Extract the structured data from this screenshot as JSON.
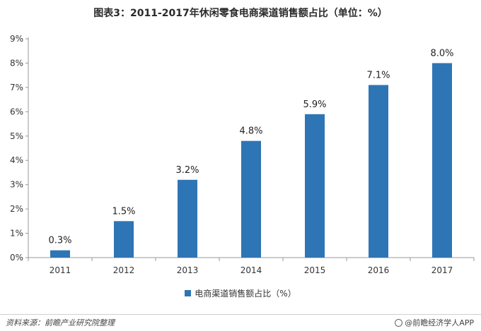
{
  "title": "图表3：2011-2017年休闲零食电商渠道销售额占比（单位：%）",
  "source": "资料来源：前瞻产业研究院整理",
  "brand": "@前瞻经济学人APP",
  "chart_data": {
    "type": "bar",
    "categories": [
      "2011",
      "2012",
      "2013",
      "2014",
      "2015",
      "2016",
      "2017"
    ],
    "series": [
      {
        "name": "电商渠道销售额占比（%）",
        "values": [
          0.3,
          1.5,
          3.2,
          4.8,
          5.9,
          7.1,
          8.0
        ],
        "labels": [
          "0.3%",
          "1.5%",
          "3.2%",
          "4.8%",
          "5.9%",
          "7.1%",
          "8.0%"
        ],
        "color": "#2e75b6"
      }
    ],
    "ylim": [
      0,
      9
    ],
    "yticks": [
      0,
      1,
      2,
      3,
      4,
      5,
      6,
      7,
      8,
      9
    ],
    "ytick_labels": [
      "0%",
      "1%",
      "2%",
      "3%",
      "4%",
      "5%",
      "6%",
      "7%",
      "8%",
      "9%"
    ],
    "grid": false,
    "legend": "bottom"
  }
}
